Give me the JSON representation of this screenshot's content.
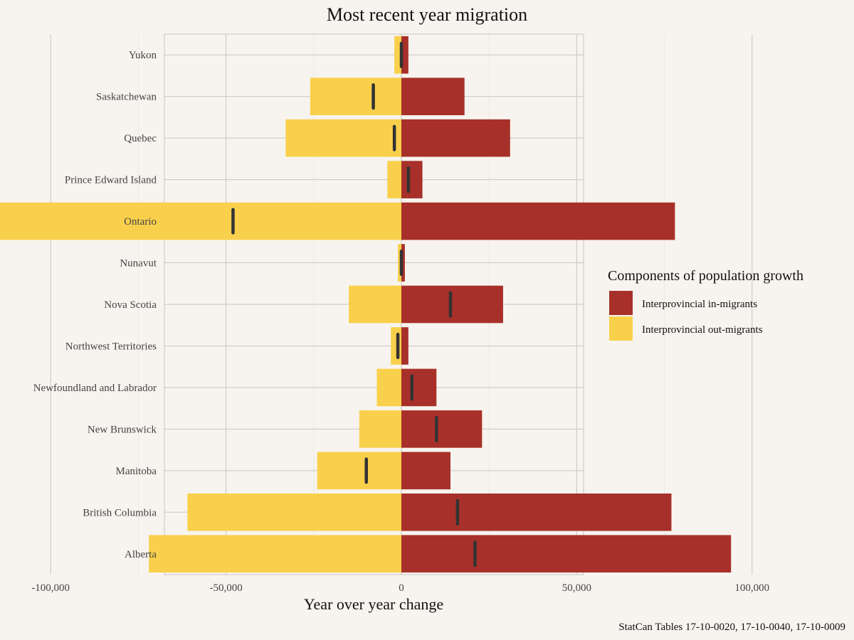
{
  "chart_data": {
    "type": "bar",
    "title": "Most recent year migration",
    "xlabel": "Year over year change",
    "ylabel": "",
    "xlim": [
      -125000,
      100000
    ],
    "xticks": [
      -100000,
      -50000,
      0,
      50000,
      100000
    ],
    "xtick_labels": [
      "-100,000",
      "-50,000",
      "0",
      "50,000",
      "100,000"
    ],
    "categories": [
      "Yukon",
      "Saskatchewan",
      "Quebec",
      "Prince Edward Island",
      "Ontario",
      "Nunavut",
      "Nova Scotia",
      "Northwest Territories",
      "Newfoundland and Labrador",
      "New Brunswick",
      "Manitoba",
      "British Columbia",
      "Alberta"
    ],
    "series": [
      {
        "name": "Interprovincial in-migrants",
        "color": "#a8302a",
        "values": [
          2000,
          18000,
          31000,
          6000,
          78000,
          1000,
          29000,
          2000,
          10000,
          23000,
          14000,
          77000,
          94000
        ]
      },
      {
        "name": "Interprovincial out-migrants",
        "color": "#f9d04b",
        "values": [
          -2000,
          -26000,
          -33000,
          -4000,
          -126000,
          -1000,
          -15000,
          -3000,
          -7000,
          -12000,
          -24000,
          -61000,
          -72000
        ]
      }
    ],
    "net_values": [
      0,
      -8000,
      -2000,
      2000,
      -48000,
      0,
      14000,
      -1000,
      3000,
      10000,
      -10000,
      16000,
      21000
    ],
    "net_color": "#333333",
    "legend_title": "Components of population growth",
    "legend_position": "right",
    "grid": true,
    "caption": "StatCan Tables 17-10-0020, 17-10-0040, 17-10-0009"
  }
}
